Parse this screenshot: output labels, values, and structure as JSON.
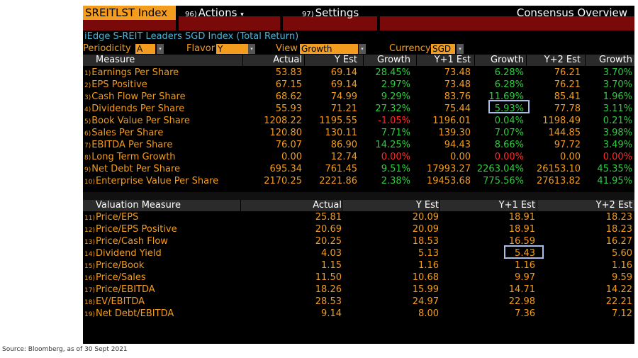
{
  "toolbar": {
    "ticker": "SREITLST Index",
    "actions_num": "96)",
    "actions_label": "Actions",
    "actions_caret": "▾",
    "settings_num": "97)",
    "settings_label": "Settings",
    "panel_title": "Consensus Overview"
  },
  "subtitle": "iEdge S-REIT Leaders SGD Index (Total Return)",
  "filters": {
    "periodicity_label": "Periodicity",
    "periodicity_value": "A",
    "flavor_label": "Flavor",
    "flavor_value": "Y",
    "view_label": "View",
    "view_value": "Growth",
    "currency_label": "Currency",
    "currency_value": "SGD",
    "dropdown_glyph": "▾"
  },
  "measures": {
    "headers": [
      "Measure",
      "Actual",
      "Y Est",
      "Growth",
      "Y+1 Est",
      "Growth",
      "Y+2 Est",
      "Growth"
    ],
    "rows": [
      {
        "idx": "1)",
        "label": "Earnings Per Share",
        "actual": "53.83",
        "y_est": "69.14",
        "growth": "28.45%",
        "y1_est": "73.48",
        "growth1": "6.28%",
        "y2_est": "76.21",
        "growth2": "3.70%"
      },
      {
        "idx": "2)",
        "label": "EPS Positive",
        "actual": "67.15",
        "y_est": "69.14",
        "growth": "2.97%",
        "y1_est": "73.48",
        "growth1": "6.28%",
        "y2_est": "76.21",
        "growth2": "3.70%"
      },
      {
        "idx": "3)",
        "label": "Cash Flow Per Share",
        "actual": "68.62",
        "y_est": "74.99",
        "growth": "9.29%",
        "y1_est": "83.76",
        "growth1": "11.69%",
        "y2_est": "85.41",
        "growth2": "1.96%"
      },
      {
        "idx": "4)",
        "label": "Dividends Per Share",
        "actual": "55.93",
        "y_est": "71.21",
        "growth": "27.32%",
        "y1_est": "75.44",
        "growth1": "5.93%",
        "y2_est": "77.78",
        "growth2": "3.11%"
      },
      {
        "idx": "5)",
        "label": "Book Value Per Share",
        "actual": "1208.22",
        "y_est": "1195.55",
        "growth": "-1.05%",
        "y1_est": "1196.01",
        "growth1": "0.04%",
        "y2_est": "1198.49",
        "growth2": "0.21%"
      },
      {
        "idx": "6)",
        "label": "Sales Per Share",
        "actual": "120.80",
        "y_est": "130.11",
        "growth": "7.71%",
        "y1_est": "139.30",
        "growth1": "7.07%",
        "y2_est": "144.85",
        "growth2": "3.98%"
      },
      {
        "idx": "7)",
        "label": "EBITDA Per Share",
        "actual": "76.07",
        "y_est": "86.90",
        "growth": "14.25%",
        "y1_est": "94.43",
        "growth1": "8.66%",
        "y2_est": "97.72",
        "growth2": "3.49%"
      },
      {
        "idx": "8)",
        "label": "Long Term Growth",
        "actual": "0.00",
        "y_est": "12.74",
        "growth": "0.00%",
        "y1_est": "0.00",
        "growth1": "0.00%",
        "y2_est": "0.00",
        "growth2": "0.00%"
      },
      {
        "idx": "9)",
        "label": "Net Debt Per Share",
        "actual": "695.34",
        "y_est": "761.45",
        "growth": "9.51%",
        "y1_est": "17993.27",
        "growth1": "2263.04%",
        "y2_est": "26153.10",
        "growth2": "45.35%"
      },
      {
        "idx": "10)",
        "label": "Enterprise Value Per Share",
        "actual": "2170.25",
        "y_est": "2221.86",
        "growth": "2.38%",
        "y1_est": "19453.68",
        "growth1": "775.56%",
        "y2_est": "27613.82",
        "growth2": "41.95%"
      }
    ]
  },
  "valuation": {
    "headers": [
      "Valuation Measure",
      "Actual",
      "Y Est",
      "Y+1 Est",
      "Y+2 Est"
    ],
    "rows": [
      {
        "idx": "11)",
        "label": "Price/EPS",
        "actual": "25.81",
        "y_est": "20.09",
        "y1_est": "18.91",
        "y2_est": "18.23"
      },
      {
        "idx": "12)",
        "label": "Price/EPS Positive",
        "actual": "20.69",
        "y_est": "20.09",
        "y1_est": "18.91",
        "y2_est": "18.23"
      },
      {
        "idx": "13)",
        "label": "Price/Cash Flow",
        "actual": "20.25",
        "y_est": "18.53",
        "y1_est": "16.59",
        "y2_est": "16.27"
      },
      {
        "idx": "14)",
        "label": "Dividend Yield",
        "actual": "4.03",
        "y_est": "5.13",
        "y1_est": "5.43",
        "y2_est": "5.60"
      },
      {
        "idx": "15)",
        "label": "Price/Book",
        "actual": "1.15",
        "y_est": "1.16",
        "y1_est": "1.16",
        "y2_est": "1.16"
      },
      {
        "idx": "16)",
        "label": "Price/Sales",
        "actual": "11.50",
        "y_est": "10.68",
        "y1_est": "9.97",
        "y2_est": "9.59"
      },
      {
        "idx": "17)",
        "label": "Price/EBITDA",
        "actual": "18.26",
        "y_est": "15.99",
        "y1_est": "14.71",
        "y2_est": "14.22"
      },
      {
        "idx": "18)",
        "label": "EV/EBITDA",
        "actual": "28.53",
        "y_est": "24.97",
        "y1_est": "22.98",
        "y2_est": "22.21"
      },
      {
        "idx": "19)",
        "label": "Net Debt/EBITDA",
        "actual": "9.14",
        "y_est": "8.00",
        "y1_est": "7.36",
        "y2_est": "7.12"
      }
    ]
  },
  "source": "Source: Bloomberg, as of 30 Sept 2021"
}
